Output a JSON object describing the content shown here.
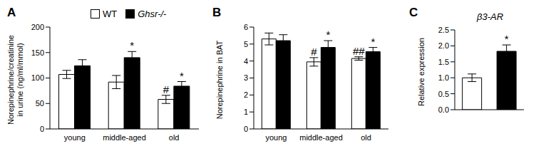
{
  "chart_data": [
    {
      "type": "bar",
      "panel_label": "A",
      "ylabel": "Norepinephrine/creatinine in urine (ng/ml/mmol)",
      "categories": [
        "young",
        "middle-aged",
        "old"
      ],
      "series": [
        {
          "name": "WT",
          "color": "#ffffff",
          "values": [
            107,
            92,
            58
          ],
          "errors": [
            8,
            13,
            8
          ]
        },
        {
          "name": "Ghsr-/-",
          "color": "#000000",
          "values": [
            124,
            140,
            84
          ],
          "errors": [
            12,
            12,
            9
          ]
        }
      ],
      "ylim": [
        0,
        200
      ],
      "yticks": [
        0,
        50,
        100,
        150,
        200
      ],
      "grid": false,
      "legend": "top",
      "annotations": [
        {
          "text": "*",
          "category": "middle-aged",
          "series": "Ghsr-/-"
        },
        {
          "text": "#",
          "category": "old",
          "series": "WT"
        },
        {
          "text": "*",
          "category": "old",
          "series": "Ghsr-/-"
        }
      ]
    },
    {
      "type": "bar",
      "panel_label": "B",
      "ylabel": "Norepinephrine in BAT",
      "categories": [
        "young",
        "middle-aged",
        "old"
      ],
      "series": [
        {
          "name": "WT",
          "color": "#ffffff",
          "values": [
            5.3,
            3.95,
            4.15
          ],
          "errors": [
            0.35,
            0.25,
            0.1
          ]
        },
        {
          "name": "Ghsr-/-",
          "color": "#000000",
          "values": [
            5.2,
            4.8,
            4.55
          ],
          "errors": [
            0.35,
            0.4,
            0.25
          ]
        }
      ],
      "ylim": [
        0,
        6
      ],
      "yticks": [
        0,
        1,
        2,
        3,
        4,
        5,
        6
      ],
      "grid": false,
      "annotations": [
        {
          "text": "#",
          "category": "middle-aged",
          "series": "WT"
        },
        {
          "text": "*",
          "category": "middle-aged",
          "series": "Ghsr-/-"
        },
        {
          "text": "##",
          "category": "old",
          "series": "WT"
        },
        {
          "text": "*",
          "category": "old",
          "series": "Ghsr-/-"
        }
      ]
    },
    {
      "type": "bar",
      "panel_label": "C",
      "title": "β3-AR",
      "ylabel": "Relative expression",
      "categories": [
        null,
        null
      ],
      "values": [
        1.0,
        1.83
      ],
      "errors": [
        0.12,
        0.2
      ],
      "colors": [
        "#ffffff",
        "#000000"
      ],
      "ylim": [
        0,
        2.5
      ],
      "yticks": [
        {
          "value": 0,
          "label": "0.0"
        },
        0.5,
        {
          "value": 1,
          "label": "1.0"
        },
        1.5,
        {
          "value": 2,
          "label": "2.0"
        },
        2.5
      ],
      "grid": false,
      "annotations": [
        {
          "text": "*",
          "index": 1
        }
      ]
    }
  ]
}
